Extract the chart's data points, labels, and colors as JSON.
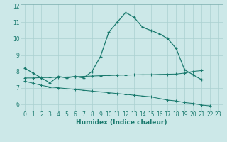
{
  "xlabel": "Humidex (Indice chaleur)",
  "x_values": [
    0,
    1,
    2,
    3,
    4,
    5,
    6,
    7,
    8,
    9,
    10,
    11,
    12,
    13,
    14,
    15,
    16,
    17,
    18,
    19,
    20,
    21,
    22,
    23
  ],
  "line1": [
    8.2,
    7.9,
    7.6,
    7.3,
    7.7,
    7.6,
    7.7,
    7.6,
    8.0,
    8.9,
    10.4,
    11.0,
    11.6,
    11.3,
    10.7,
    10.5,
    10.3,
    10.0,
    9.4,
    8.1,
    7.8,
    7.5,
    null,
    null
  ],
  "flat_line": [
    7.6,
    7.6,
    7.62,
    7.63,
    7.65,
    7.66,
    7.68,
    7.7,
    7.72,
    7.74,
    7.75,
    7.77,
    7.78,
    7.79,
    7.8,
    7.8,
    7.82,
    7.83,
    7.84,
    7.9,
    8.0,
    8.05,
    null,
    null
  ],
  "dashed_line": [
    7.4,
    7.28,
    7.15,
    7.05,
    7.0,
    6.95,
    6.9,
    6.85,
    6.8,
    6.75,
    6.7,
    6.65,
    6.6,
    6.55,
    6.5,
    6.45,
    6.35,
    6.25,
    6.2,
    6.1,
    6.05,
    5.95,
    5.9,
    null
  ],
  "bg_color": "#cce8e8",
  "grid_color": "#aad0d0",
  "line_color": "#1a7a6e",
  "ylim": [
    5.6,
    12.1
  ],
  "yticks": [
    6,
    7,
    8,
    9,
    10,
    11,
    12
  ],
  "xlim": [
    -0.5,
    23.5
  ],
  "tick_fontsize": 5.5,
  "xlabel_fontsize": 6.5
}
